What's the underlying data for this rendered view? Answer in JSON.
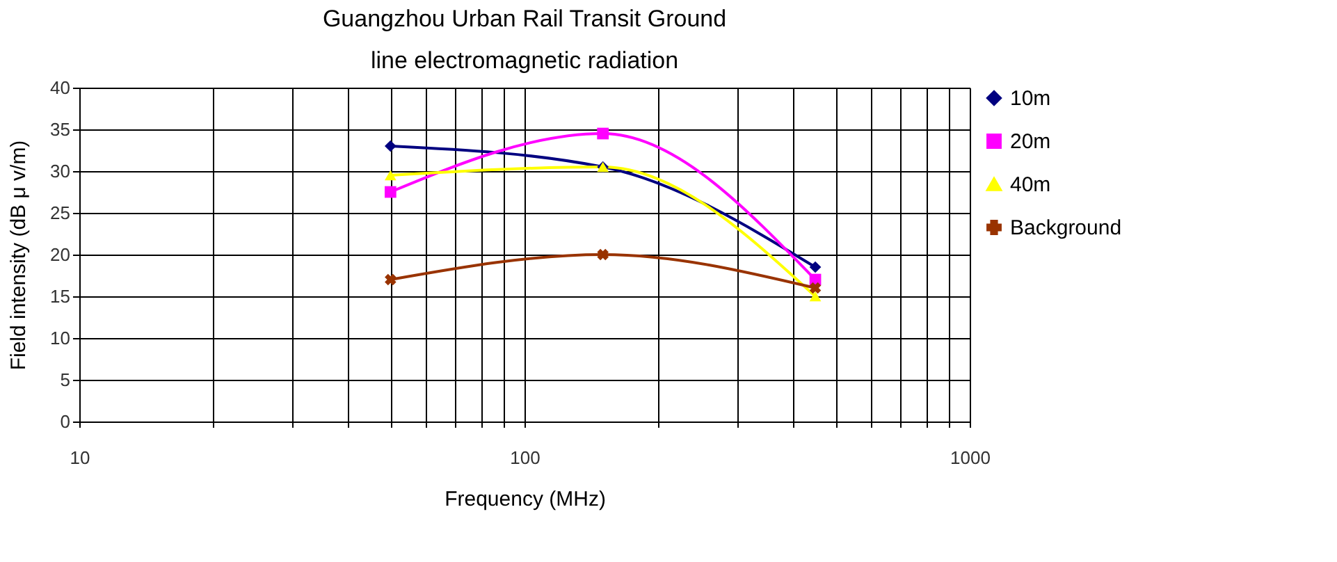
{
  "chart_data": {
    "type": "line",
    "title": "Guangzhou Urban Rail Transit Ground line electromagnetic radiation",
    "xlabel": "Frequency (MHz)",
    "ylabel": "Field intensity (dB μ v/m)",
    "x": [
      50,
      150,
      450
    ],
    "series": [
      {
        "name": "10m",
        "color": "#000080",
        "marker": "diamond",
        "values": [
          33,
          30.5,
          18.5
        ]
      },
      {
        "name": "20m",
        "color": "#ff00ff",
        "marker": "square",
        "values": [
          27.5,
          34.5,
          17
        ]
      },
      {
        "name": "40m",
        "color": "#ffff00",
        "marker": "triangle",
        "values": [
          29.5,
          30.5,
          15
        ]
      },
      {
        "name": "Background",
        "color": "#993300",
        "marker": "cross",
        "values": [
          17,
          20,
          16
        ]
      }
    ],
    "log": "x",
    "xlim": [
      10,
      1000
    ],
    "xticks": [
      10,
      {
        "value": 20,
        "label": null
      },
      {
        "value": 30,
        "label": null
      },
      {
        "value": 40,
        "label": null
      },
      {
        "value": 50,
        "label": null
      },
      {
        "value": 60,
        "label": null
      },
      {
        "value": 70,
        "label": null
      },
      {
        "value": 80,
        "label": null
      },
      {
        "value": 90,
        "label": null
      },
      100,
      {
        "value": 200,
        "label": null
      },
      {
        "value": 300,
        "label": null
      },
      {
        "value": 400,
        "label": null
      },
      {
        "value": 500,
        "label": null
      },
      {
        "value": 600,
        "label": null
      },
      {
        "value": 700,
        "label": null
      },
      {
        "value": 800,
        "label": null
      },
      {
        "value": 900,
        "label": null
      },
      1000
    ],
    "ylim": [
      0,
      40
    ],
    "yticks": [
      0,
      5,
      10,
      15,
      20,
      25,
      30,
      35,
      40
    ],
    "grid": true,
    "legend": "right",
    "line_style": "solid"
  }
}
